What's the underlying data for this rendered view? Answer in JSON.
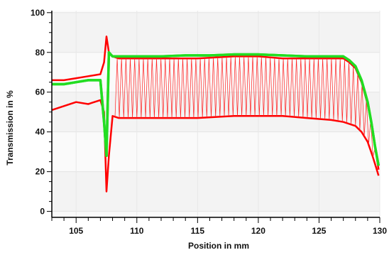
{
  "chart_data": {
    "type": "line",
    "xlabel": "Position in mm",
    "ylabel": "Transmission in %",
    "xlim": [
      103,
      130
    ],
    "ylim": [
      -3,
      101
    ],
    "x_ticks": [
      105,
      110,
      115,
      120,
      125,
      130
    ],
    "x_tick_labels": [
      "105",
      "110",
      "115",
      "120",
      "125",
      "130"
    ],
    "y_ticks": [
      0,
      20,
      40,
      60,
      80,
      100
    ],
    "y_tick_labels": [
      "0",
      "20",
      "40",
      "60",
      "80",
      "100"
    ],
    "grid": true,
    "series": [
      {
        "color": "#ff0000",
        "role": "upper-envelope",
        "x": [
          103,
          104,
          105,
          106,
          107,
          107.3,
          107.5,
          107.7,
          108,
          108.5,
          110,
          112,
          115,
          118,
          120,
          122,
          124,
          126,
          127,
          127.5,
          128,
          128.5,
          129,
          129.3,
          129.6,
          129.9
        ],
        "y": [
          66,
          66,
          67,
          68,
          69,
          75,
          88,
          80,
          78,
          77,
          77,
          77,
          77,
          78,
          78,
          77,
          77,
          77,
          77,
          75,
          72,
          65,
          54,
          45,
          33,
          21
        ]
      },
      {
        "color": "#ff0000",
        "role": "lower-envelope",
        "x": [
          103,
          104,
          105,
          106,
          107,
          107.3,
          107.5,
          107.7,
          108,
          108.5,
          110,
          112,
          115,
          118,
          120,
          122,
          124,
          126,
          127,
          128,
          128.5,
          129,
          129.4,
          129.7,
          129.9
        ],
        "y": [
          51,
          53,
          55,
          54,
          56,
          50,
          10,
          28,
          48,
          47,
          47,
          47,
          47,
          48,
          48,
          48,
          47,
          46,
          45,
          43,
          40,
          35,
          28,
          22,
          18
        ]
      },
      {
        "color": "#22dd22",
        "role": "reference",
        "x": [
          103,
          104,
          105,
          106,
          107,
          107.3,
          107.5,
          107.7,
          108,
          108.5,
          110,
          112,
          114,
          116,
          118,
          120,
          122,
          124,
          126,
          127,
          127.5,
          128,
          128.5,
          129,
          129.3,
          129.6,
          129.9
        ],
        "y": [
          64,
          64,
          65,
          66,
          66,
          45,
          28,
          80,
          78,
          78,
          78,
          78,
          78.5,
          78.5,
          79,
          79,
          78.5,
          78,
          78,
          78,
          76,
          73,
          66,
          55,
          45,
          33,
          23
        ]
      }
    ]
  }
}
